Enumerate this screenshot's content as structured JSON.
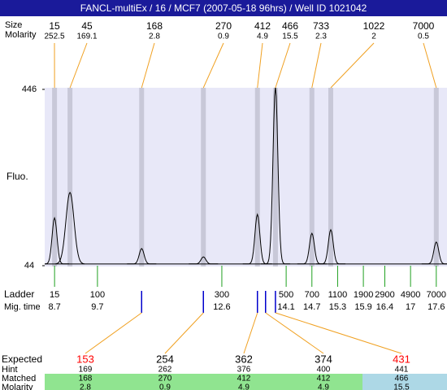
{
  "chart_data": {
    "type": "electropherogram",
    "title": "FANCL-multiEx / 16 / MCF7 (2007-05-18 96hrs) / Well ID 1021042",
    "ylabel": "Fluo.",
    "ylim": [
      44,
      446
    ],
    "yticks": [
      44,
      446
    ],
    "xlim": [
      8.47,
      17.85
    ],
    "baseline": 48,
    "peaks": {
      "labels": [
        "Size",
        "Molarity"
      ],
      "size": [
        15,
        45,
        168,
        270,
        412,
        466,
        733,
        1022,
        7000
      ],
      "molarity": [
        252.5,
        169.1,
        2.8,
        0.9,
        4.9,
        15.5,
        2.3,
        2,
        0.5
      ],
      "mig_time": [
        8.7,
        9.06,
        10.73,
        12.17,
        13.43,
        13.85,
        14.7,
        15.14,
        17.6
      ],
      "height": [
        153,
        211,
        83,
        64,
        161,
        452,
        118,
        126,
        98
      ]
    },
    "ladder": {
      "labels": [
        "Ladder",
        "Mig. time"
      ],
      "size": [
        15,
        100,
        300,
        500,
        700,
        1100,
        1900,
        2900,
        4900,
        7000
      ],
      "mig_time": [
        8.7,
        9.7,
        12.6,
        14.1,
        14.7,
        15.3,
        15.9,
        16.4,
        17,
        17.6
      ]
    },
    "table": {
      "row_labels": [
        "Expected",
        "Hint",
        "Matched",
        "Molarity"
      ],
      "expected": [
        153,
        254,
        362,
        374,
        431
      ],
      "expected_colors": [
        "#ff0000",
        "#000000",
        "#000000",
        "#000000",
        "#ff0000"
      ],
      "hint": [
        169,
        262,
        376,
        400,
        441
      ],
      "matched": [
        168,
        270,
        412,
        412,
        466
      ],
      "matched_colors": [
        "#90e490",
        "#90e490",
        "#90e490",
        "#90e490",
        "#add8e6"
      ],
      "molarity": [
        2.8,
        0.9,
        4.9,
        4.9,
        15.5
      ]
    }
  }
}
